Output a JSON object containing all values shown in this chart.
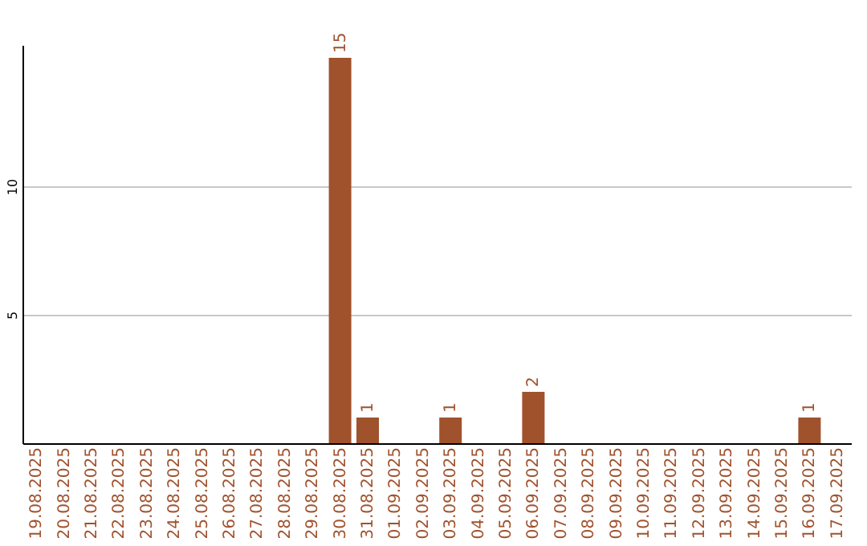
{
  "chart_data": {
    "type": "bar",
    "categories": [
      "19.08.2025",
      "20.08.2025",
      "21.08.2025",
      "22.08.2025",
      "23.08.2025",
      "24.08.2025",
      "25.08.2025",
      "26.08.2025",
      "27.08.2025",
      "28.08.2025",
      "29.08.2025",
      "30.08.2025",
      "31.08.2025",
      "01.09.2025",
      "02.09.2025",
      "03.09.2025",
      "04.09.2025",
      "05.09.2025",
      "06.09.2025",
      "07.09.2025",
      "08.09.2025",
      "09.09.2025",
      "10.09.2025",
      "11.09.2025",
      "12.09.2025",
      "13.09.2025",
      "14.09.2025",
      "15.09.2025",
      "16.09.2025",
      "17.09.2025"
    ],
    "values": [
      0,
      0,
      0,
      0,
      0,
      0,
      0,
      0,
      0,
      0,
      0,
      15,
      1,
      0,
      0,
      1,
      0,
      0,
      2,
      0,
      0,
      0,
      0,
      0,
      0,
      0,
      0,
      0,
      1,
      0
    ],
    "value_labels": [
      null,
      null,
      null,
      null,
      null,
      null,
      null,
      null,
      null,
      null,
      null,
      "15",
      "1",
      null,
      null,
      "1",
      null,
      null,
      "2",
      null,
      null,
      null,
      null,
      null,
      null,
      null,
      null,
      null,
      "1",
      null
    ],
    "color": "#a0522d",
    "ylim": [
      0,
      15.5
    ],
    "yticks": [
      5,
      10
    ],
    "grid": "y"
  }
}
